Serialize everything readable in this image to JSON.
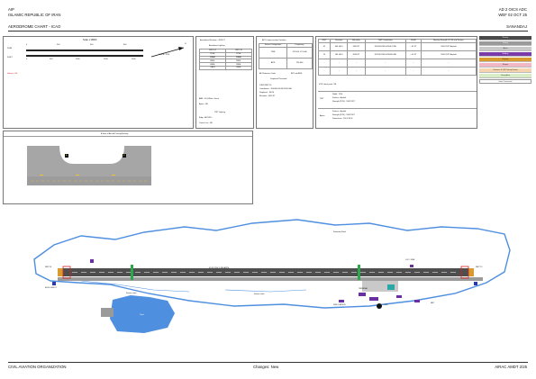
{
  "header": {
    "aip": "AIP",
    "state": "ISLAMIC REPUBLIC OF IRAN",
    "chart_title": "AERODROME CHART - ICAO",
    "page_ref": "AD 2 OICS ADC",
    "effective": "WEF 02 OCT 25",
    "aerodrome_name": "SANANDAJ"
  },
  "footer": {
    "left": "CIVIL AVIATION ORGANIZATION",
    "center": "Changes: New",
    "right": "AIRAC AMDT 2/25"
  },
  "scale_panel": {
    "title": "Scale 1:18000",
    "unit_top": "200M",
    "unit_bottom": "500FT",
    "ticks_top": [
      "0",
      "200",
      "400",
      "600"
    ],
    "ticks_bottom": [
      "0",
      "500",
      "1000",
      "1500",
      "2000"
    ],
    "north_label": "N",
    "arrow_label": "13.6°E / 2014",
    "hotspot_text": "Hotspot : NIL"
  },
  "lighting": {
    "elevation_line": "Aerodrome Elevation : 4528 FT",
    "title": "Aerodrome Lighting",
    "col_left": "RWY 01",
    "col_right": "RWY 19",
    "rows": [
      [
        "RTHL",
        "RTHL"
      ],
      [
        "WBAR",
        "WBAR"
      ],
      [
        "REDL",
        "REDL"
      ],
      [
        "RENL",
        "RENL"
      ],
      [
        "CAPS",
        "RENL"
      ]
    ],
    "abn": "ABN : FLG White, Green",
    "apron": "Apron : NIL",
    "twy_title": "TWY Lighting",
    "edge": "Edge : All TWYs",
    "centre": "Center Line : NIL"
  },
  "ats": {
    "title": "ATS Communication Facilities",
    "col_service": "Service Designation",
    "col_freq": "Frequency",
    "rows": [
      [
        "TWR",
        "122.500, 121.000"
      ],
      [
        "ATIS",
        "126.400"
      ]
    ],
    "ref_label": "AD Reference Code",
    "ref_value": "BP2 not AVSL",
    "thr_title": "Displaced Threshold",
    "thr_lines": [
      "DTHR RWY 01",
      "Coordinates : 351046.00N  0470010.00E",
      "Displaced : 100 M",
      "Elevation : 4490 FT"
    ]
  },
  "rwy_table": {
    "headers": [
      "RWY",
      "Direction",
      "Elevation",
      "THR Coordinates",
      "GUND",
      "Bearing Strength (PCN) and Surface"
    ],
    "rows": [
      [
        "01",
        "004 GEO",
        "4490 FT",
        "351003.29N  0470012.35E",
        "+ 61 FT",
        "55/F/C/X/T  Asphalt"
      ],
      [
        "19",
        "184 GEO",
        "4528 FT",
        "351926.20N  0470049.90E",
        "+ 61 FT",
        "55/F/C/X/T  Asphalt"
      ],
      [
        "-",
        "-",
        "-",
        "-",
        "-",
        "-"
      ],
      [
        "-",
        "-",
        "-",
        "-",
        "-",
        "-"
      ]
    ],
    "vor_label": "VOR check point : NIL",
    "twy_label": "TWY",
    "twy_lines": [
      "Width : 23 M",
      "Surface : Asphalt",
      "Strength (PCN) : 55/F/C/X/T"
    ],
    "apron_label": "Apron",
    "apron_lines": [
      "Surface : Asphalt",
      "Strength (PCN) : 55/F/C/X/T",
      "Dimensions : 200 X 82 M"
    ]
  },
  "legend": {
    "items": [
      "Runway",
      "Taxiway",
      "Apron",
      "Building",
      "Stopway",
      "Hotspot",
      "Clearance & VFR Parking Position",
      "Grassy Area",
      "Intent Construction"
    ],
    "colors": [
      "#4a4a4a",
      "#9a9a9a",
      "#c9c9c9",
      "#7a3aa8",
      "#d99b2f",
      "#f2b7c5",
      "#f6d4b0",
      "#d8ecc5",
      "#ffffff"
    ]
  },
  "parking": {
    "title": "A View of Aircraft Parking/Docking",
    "stands": [
      "A",
      "B"
    ]
  },
  "map": {
    "runway_label": "01/19 3190 X 45M ASPH",
    "road_label": "Sanandaj Road",
    "service_road_1": "Service road",
    "service_road_2": "Service road",
    "pond_label": "Pond",
    "rwy01_label": "RWY 01",
    "rwy19_label": "RWY 19",
    "elev_label": "ELEV 4490 FT",
    "twr_label": "TWR",
    "met_label": "MET",
    "fire_label": "FIRE STATION",
    "terminal_label": "TERMINAL",
    "loc_label": "LOC / DME"
  },
  "colors": {
    "runway": "#4e4e4e",
    "taxiway": "#9b9b9b",
    "road": "#4f8fe0",
    "water": "#4f8fe0",
    "building": "#6a2fa0",
    "accent": "#d72020"
  }
}
